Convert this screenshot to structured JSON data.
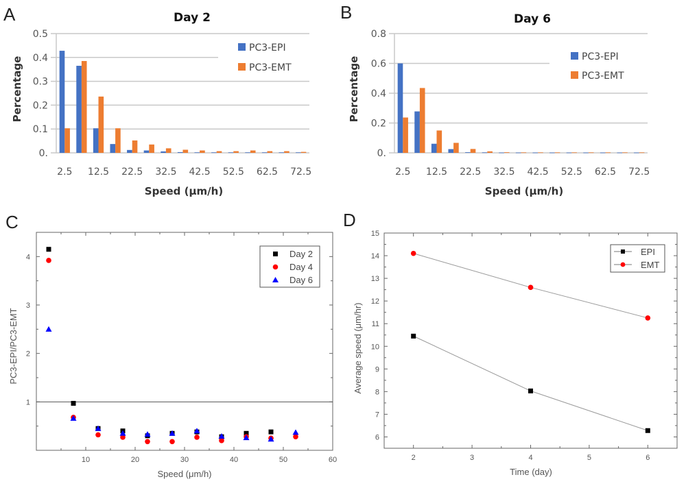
{
  "panels": {
    "a": "A",
    "b": "B",
    "c": "C",
    "d": "D"
  },
  "chart_data": [
    {
      "id": "A",
      "type": "bar",
      "title": "Day 2",
      "xlabel": "Speed (μm/h)",
      "ylabel": "Percentage",
      "ylim": [
        0,
        0.5
      ],
      "yticks": [
        "0.",
        "0.1",
        "0.2",
        "0.3",
        "0.4",
        "0.5"
      ],
      "categories": [
        2.5,
        7.5,
        12.5,
        17.5,
        22.5,
        27.5,
        32.5,
        37.5,
        42.5,
        47.5,
        52.5,
        57.5,
        62.5,
        67.5,
        72.5
      ],
      "xtick_labels": [
        "2.5",
        "12.5",
        "22.5",
        "32.5",
        "42.5",
        "52.5",
        "62.5",
        "72.5"
      ],
      "series": [
        {
          "name": "PC3-EPI",
          "color": "#4472C4",
          "values": [
            0.428,
            0.365,
            0.103,
            0.037,
            0.012,
            0.01,
            0.006,
            0.003,
            0.002,
            0.002,
            0.002,
            0.002,
            0.002,
            0.002,
            0.002
          ]
        },
        {
          "name": "PC3-EMT",
          "color": "#ED7D31",
          "values": [
            0.103,
            0.385,
            0.236,
            0.103,
            0.052,
            0.035,
            0.019,
            0.013,
            0.01,
            0.007,
            0.007,
            0.01,
            0.007,
            0.007,
            0.004
          ]
        }
      ],
      "legend": "top-right",
      "grid": true
    },
    {
      "id": "B",
      "type": "bar",
      "title": "Day 6",
      "xlabel": "Speed (μm/h)",
      "ylabel": "Percentage",
      "ylim": [
        0,
        0.8
      ],
      "yticks": [
        "0.",
        "0.2",
        "0.4",
        "0.6",
        "0.8"
      ],
      "categories": [
        2.5,
        7.5,
        12.5,
        17.5,
        22.5,
        27.5,
        32.5,
        37.5,
        42.5,
        47.5,
        52.5,
        57.5,
        62.5,
        67.5,
        72.5
      ],
      "xtick_labels": [
        "2.5",
        "12.5",
        "22.5",
        "32.5",
        "42.5",
        "52.5",
        "62.5",
        "72.5"
      ],
      "series": [
        {
          "name": "PC3-EPI",
          "color": "#4472C4",
          "values": [
            0.6,
            0.278,
            0.061,
            0.025,
            0.004,
            0.003,
            0.002,
            0.002,
            0.002,
            0.002,
            0.002,
            0.002,
            0.002,
            0.002,
            0.002
          ]
        },
        {
          "name": "PC3-EMT",
          "color": "#ED7D31",
          "values": [
            0.237,
            0.435,
            0.15,
            0.067,
            0.026,
            0.01,
            0.004,
            0.003,
            0.003,
            0.003,
            0.003,
            0.003,
            0.003,
            0.003,
            0.003
          ]
        }
      ],
      "legend": "top-right",
      "grid": true
    },
    {
      "id": "C",
      "type": "scatter",
      "title": "",
      "xlabel": "Speed (μm/h)",
      "ylabel": "PC3-EPI/PC3-EMT",
      "xlim": [
        0,
        60
      ],
      "ylim": [
        0,
        4.5
      ],
      "xticks": [
        "10",
        "20",
        "30",
        "40",
        "50",
        "60"
      ],
      "yticks": [
        "1",
        "2",
        "3",
        "4"
      ],
      "reference_line": 1,
      "series": [
        {
          "name": "Day 2",
          "color": "#000000",
          "marker": "square",
          "x": [
            2.5,
            7.5,
            12.5,
            17.5,
            22.5,
            27.5,
            32.5,
            37.5,
            42.5,
            47.5
          ],
          "y": [
            4.15,
            0.97,
            0.45,
            0.4,
            0.3,
            0.35,
            0.38,
            0.28,
            0.35,
            0.38
          ]
        },
        {
          "name": "Day 4",
          "color": "#FF0000",
          "marker": "circle",
          "x": [
            2.5,
            7.5,
            12.5,
            17.5,
            22.5,
            27.5,
            32.5,
            37.5,
            42.5,
            47.5,
            52.5
          ],
          "y": [
            3.92,
            0.68,
            0.32,
            0.27,
            0.18,
            0.18,
            0.27,
            0.2,
            0.28,
            0.25,
            0.28
          ]
        },
        {
          "name": "Day 6",
          "color": "#0000FF",
          "marker": "triangle",
          "x": [
            2.5,
            7.5,
            12.5,
            17.5,
            22.5,
            27.5,
            32.5,
            37.5,
            42.5,
            47.5,
            52.5
          ],
          "y": [
            2.5,
            0.66,
            0.45,
            0.35,
            0.33,
            0.35,
            0.4,
            0.29,
            0.26,
            0.23,
            0.37
          ]
        }
      ],
      "legend": "top-right",
      "grid": false
    },
    {
      "id": "D",
      "type": "line",
      "title": "",
      "xlabel": "Time (day)",
      "ylabel": "Average speed (μm/hr)",
      "xlim": [
        1.5,
        6.5
      ],
      "ylim": [
        5.5,
        15
      ],
      "xticks": [
        "2",
        "3",
        "4",
        "5",
        "6"
      ],
      "yticks": [
        "6",
        "7",
        "8",
        "9",
        "10",
        "11",
        "12",
        "13",
        "14",
        "15"
      ],
      "x": [
        2,
        4,
        6
      ],
      "series": [
        {
          "name": "EPI",
          "color": "#000000",
          "marker": "square",
          "values": [
            10.45,
            8.03,
            6.28
          ]
        },
        {
          "name": "EMT",
          "color": "#FF0000",
          "marker": "circle",
          "values": [
            14.1,
            12.6,
            11.25
          ]
        }
      ],
      "legend": "top-right",
      "grid": false
    }
  ]
}
